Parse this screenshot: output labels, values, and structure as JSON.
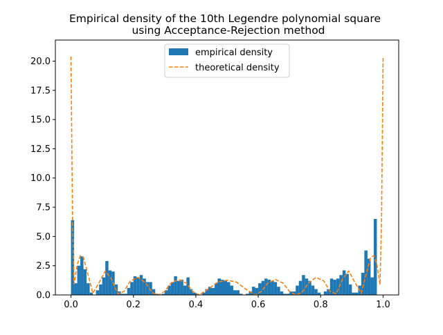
{
  "chart_data": {
    "type": "bar",
    "title_line1": "Empirical density of the 10th Legendre polynomial square",
    "title_line2": "using Acceptance-Rejection method",
    "xlabel": "",
    "ylabel": "",
    "xlim": [
      -0.05,
      1.05
    ],
    "ylim": [
      0,
      21.8
    ],
    "xticks": [
      0.0,
      0.2,
      0.4,
      0.6,
      0.8,
      1.0
    ],
    "xtick_labels": [
      "0.0",
      "0.2",
      "0.4",
      "0.6",
      "0.8",
      "1.0"
    ],
    "yticks": [
      0.0,
      2.5,
      5.0,
      7.5,
      10.0,
      12.5,
      15.0,
      17.5,
      20.0
    ],
    "ytick_labels": [
      "0.0",
      "2.5",
      "5.0",
      "7.5",
      "10.0",
      "12.5",
      "15.0",
      "17.5",
      "20.0"
    ],
    "grid": false,
    "legend_position": "top-center",
    "series": [
      {
        "name": "empirical density",
        "type": "histogram",
        "color": "#1f77b4",
        "bin_width": 0.01,
        "bin_start": 0.0,
        "values": [
          6.4,
          1.0,
          2.5,
          3.3,
          2.2,
          1.0,
          0.2,
          0.0,
          0.4,
          0.9,
          1.5,
          2.9,
          2.1,
          2.0,
          0.9,
          0.3,
          0.1,
          0.1,
          0.6,
          1.1,
          1.6,
          1.5,
          1.7,
          1.4,
          1.1,
          1.1,
          0.5,
          0.1,
          0.0,
          0.1,
          0.4,
          0.8,
          1.1,
          1.6,
          1.2,
          1.3,
          0.8,
          1.5,
          0.5,
          0.2,
          0.1,
          0.0,
          0.2,
          0.5,
          0.7,
          0.6,
          1.0,
          1.4,
          1.3,
          1.2,
          1.1,
          0.8,
          0.4,
          0.4,
          0.1,
          0.0,
          0.1,
          0.3,
          0.7,
          0.6,
          1.0,
          1.2,
          1.4,
          1.3,
          1.2,
          1.1,
          0.7,
          0.3,
          0.1,
          0.1,
          0.3,
          0.3,
          0.8,
          1.2,
          1.7,
          1.4,
          1.2,
          0.8,
          0.5,
          0.2,
          0.0,
          0.3,
          0.5,
          1.4,
          1.3,
          1.4,
          1.7,
          2.1,
          1.8,
          0.9,
          0.2,
          0.2,
          0.8,
          1.9,
          3.8,
          3.1,
          1.5,
          6.5
        ]
      },
      {
        "name": "theoretical density",
        "type": "line",
        "style": "dashed",
        "color": "#ff7f0e",
        "x": [
          0.0,
          0.005,
          0.01,
          0.02,
          0.03,
          0.04,
          0.055,
          0.07,
          0.09,
          0.11,
          0.13,
          0.15,
          0.17,
          0.19,
          0.215,
          0.24,
          0.26,
          0.28,
          0.3,
          0.32,
          0.345,
          0.37,
          0.39,
          0.41,
          0.44,
          0.47,
          0.5,
          0.53,
          0.56,
          0.59,
          0.61,
          0.63,
          0.655,
          0.68,
          0.7,
          0.72,
          0.74,
          0.76,
          0.785,
          0.81,
          0.83,
          0.85,
          0.87,
          0.89,
          0.91,
          0.93,
          0.945,
          0.96,
          0.97,
          0.98,
          0.99,
          0.995,
          1.0
        ],
        "y": [
          20.4,
          6.3,
          0.9,
          2.6,
          3.35,
          3.2,
          1.7,
          0.15,
          1.05,
          2.05,
          1.35,
          0.1,
          0.3,
          1.2,
          1.5,
          1.0,
          0.2,
          0.0,
          0.3,
          1.0,
          1.32,
          1.0,
          0.3,
          0.0,
          0.5,
          1.1,
          1.26,
          1.1,
          0.5,
          0.0,
          0.3,
          1.0,
          1.32,
          1.0,
          0.3,
          0.0,
          0.2,
          1.0,
          1.5,
          1.2,
          0.3,
          0.1,
          1.35,
          2.05,
          1.05,
          0.15,
          1.7,
          3.2,
          3.35,
          2.6,
          0.9,
          6.3,
          20.4
        ]
      }
    ]
  }
}
